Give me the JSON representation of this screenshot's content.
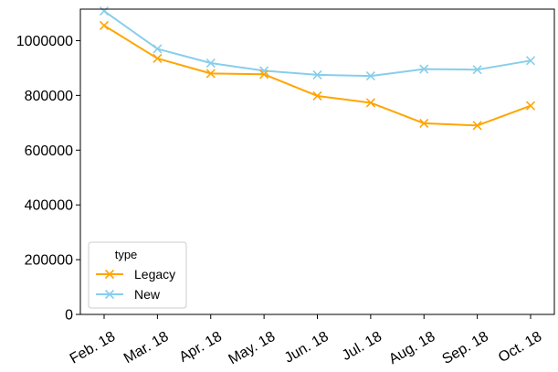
{
  "chart_data": {
    "type": "line",
    "categories": [
      "Feb. 18",
      "Mar. 18",
      "Apr. 18",
      "May. 18",
      "Jun. 18",
      "Jul. 18",
      "Aug. 18",
      "Sep. 18",
      "Oct. 18"
    ],
    "series": [
      {
        "name": "Legacy",
        "color": "#ffa500",
        "marker": "x",
        "values": [
          1055000,
          935000,
          880000,
          877000,
          798000,
          773000,
          698000,
          690000,
          762000
        ]
      },
      {
        "name": "New",
        "color": "#87ceeb",
        "marker": "x",
        "values": [
          1108000,
          970000,
          918000,
          890000,
          875000,
          871000,
          896000,
          894000,
          927000
        ]
      }
    ],
    "y_ticks": [
      0,
      200000,
      400000,
      600000,
      800000,
      1000000
    ],
    "ylim": [
      0,
      1115000
    ],
    "title": "",
    "xlabel": "",
    "ylabel": "",
    "legend": {
      "title": "type",
      "placement": "lower-left"
    },
    "grid": false
  }
}
